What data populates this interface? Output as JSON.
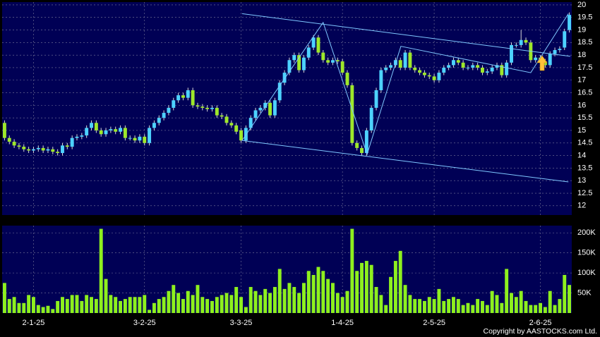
{
  "chart_data": {
    "type": "candlestick",
    "copyright": "Copyright by AASTOCKS.com Ltd.",
    "categories": [
      null,
      null,
      null,
      null,
      null,
      null,
      "2-1-25",
      null,
      null,
      null,
      null,
      null,
      null,
      null,
      null,
      null,
      null,
      null,
      null,
      null,
      null,
      null,
      null,
      null,
      null,
      null,
      null,
      null,
      null,
      "3-2-25",
      null,
      null,
      null,
      null,
      null,
      null,
      null,
      null,
      null,
      null,
      null,
      null,
      null,
      null,
      null,
      null,
      null,
      null,
      null,
      "3-3-25",
      null,
      null,
      null,
      null,
      null,
      null,
      null,
      null,
      null,
      null,
      null,
      null,
      null,
      null,
      null,
      null,
      null,
      null,
      null,
      null,
      "1-4-25",
      null,
      null,
      null,
      null,
      null,
      null,
      null,
      null,
      null,
      null,
      null,
      null,
      null,
      null,
      null,
      null,
      null,
      null,
      "2-5-25",
      null,
      null,
      null,
      null,
      null,
      null,
      null,
      null,
      null,
      null,
      null,
      null,
      null,
      null,
      null,
      null,
      null,
      null,
      null,
      null,
      null,
      "2-6-25",
      null,
      null,
      null,
      null,
      null,
      null
    ],
    "up_color": "#4dd2ff",
    "down_color": "#9ee82a",
    "volume_color": "#8ef01e",
    "line_color": "#7fc8ff",
    "open": [
      15.3,
      14.7,
      14.55,
      14.4,
      14.35,
      14.25,
      14.2,
      14.25,
      14.3,
      14.2,
      14.25,
      14.15,
      14.1,
      14.4,
      14.35,
      14.7,
      14.75,
      14.8,
      15.1,
      15.3,
      15.0,
      14.85,
      15.0,
      15.05,
      14.95,
      15.1,
      14.7,
      14.7,
      14.6,
      14.75,
      14.5,
      15.1,
      15.3,
      15.5,
      15.7,
      15.9,
      16.2,
      16.4,
      16.3,
      16.6,
      16.0,
      15.95,
      15.9,
      15.85,
      15.9,
      15.6,
      15.55,
      15.3,
      15.2,
      15.0,
      14.6,
      15.1,
      15.5,
      15.8,
      15.9,
      16.1,
      15.6,
      16.2,
      16.9,
      17.3,
      17.8,
      18.0,
      17.4,
      17.9,
      18.3,
      18.7,
      18.1,
      17.8,
      17.7,
      17.8,
      17.75,
      17.3,
      16.8,
      14.5,
      14.3,
      14.1,
      15.0,
      15.9,
      16.6,
      17.4,
      17.5,
      17.6,
      17.8,
      17.5,
      18.1,
      17.5,
      17.4,
      17.3,
      17.2,
      17.15,
      17.0,
      17.3,
      17.5,
      17.6,
      17.8,
      17.7,
      17.5,
      17.5,
      17.6,
      17.5,
      17.3,
      17.35,
      17.5,
      17.6,
      17.2,
      17.7,
      18.4,
      18.4,
      18.6,
      18.5,
      17.8,
      17.9,
      17.75,
      17.6,
      18.05,
      18.2,
      18.3,
      19.0
    ],
    "high": [
      15.4,
      14.8,
      14.65,
      14.5,
      14.45,
      14.35,
      14.35,
      14.4,
      14.4,
      14.35,
      14.35,
      14.25,
      14.5,
      14.5,
      14.8,
      14.85,
      14.9,
      15.2,
      15.4,
      15.4,
      15.1,
      15.1,
      15.15,
      15.15,
      15.2,
      15.2,
      14.8,
      14.8,
      14.85,
      14.85,
      15.2,
      15.4,
      15.6,
      15.8,
      16.0,
      16.3,
      16.5,
      16.5,
      16.7,
      16.7,
      16.1,
      16.05,
      16.0,
      16.0,
      16.0,
      15.7,
      15.65,
      15.4,
      15.3,
      15.1,
      15.2,
      15.6,
      15.9,
      16.0,
      16.2,
      16.2,
      16.3,
      17.0,
      17.4,
      17.9,
      18.1,
      18.1,
      18.0,
      18.4,
      18.8,
      18.8,
      18.2,
      17.9,
      17.9,
      17.9,
      17.85,
      17.4,
      16.9,
      14.6,
      14.4,
      15.1,
      16.0,
      16.7,
      17.5,
      17.6,
      17.7,
      17.9,
      17.9,
      18.2,
      18.2,
      17.6,
      17.5,
      17.4,
      17.3,
      17.25,
      17.4,
      17.6,
      17.7,
      17.9,
      17.9,
      17.8,
      17.6,
      17.7,
      17.7,
      17.6,
      17.45,
      17.6,
      17.7,
      17.7,
      17.8,
      18.5,
      18.5,
      19.0,
      18.7,
      18.6,
      18.0,
      18.0,
      17.85,
      18.15,
      18.3,
      18.35,
      19.05,
      19.7
    ],
    "low": [
      14.6,
      14.45,
      14.3,
      14.25,
      14.15,
      14.1,
      14.1,
      14.15,
      14.1,
      14.1,
      14.05,
      14.0,
      14.0,
      14.25,
      14.25,
      14.6,
      14.65,
      14.7,
      15.0,
      14.9,
      14.75,
      14.75,
      14.9,
      14.85,
      14.85,
      14.6,
      14.6,
      14.5,
      14.5,
      14.4,
      14.4,
      15.0,
      15.2,
      15.4,
      15.6,
      15.8,
      16.1,
      16.2,
      16.2,
      15.9,
      15.85,
      15.8,
      15.75,
      15.75,
      15.5,
      15.45,
      15.2,
      15.1,
      14.85,
      14.5,
      14.5,
      15.0,
      15.4,
      15.7,
      15.8,
      15.5,
      15.5,
      16.1,
      16.8,
      17.2,
      17.7,
      17.3,
      17.3,
      17.8,
      18.2,
      18.0,
      17.7,
      17.6,
      17.6,
      17.65,
      17.2,
      16.7,
      14.4,
      14.2,
      14.0,
      14.0,
      14.9,
      15.8,
      16.5,
      17.3,
      17.4,
      17.5,
      17.4,
      17.4,
      17.4,
      17.3,
      17.2,
      17.1,
      17.05,
      16.9,
      16.9,
      17.2,
      17.4,
      17.5,
      17.6,
      17.4,
      17.4,
      17.4,
      17.4,
      17.2,
      17.2,
      17.25,
      17.4,
      17.1,
      17.1,
      17.6,
      18.3,
      18.3,
      18.4,
      17.7,
      17.7,
      17.65,
      17.5,
      17.5,
      17.95,
      18.1,
      18.2,
      18.9
    ],
    "close": [
      14.7,
      14.55,
      14.4,
      14.35,
      14.25,
      14.2,
      14.25,
      14.3,
      14.2,
      14.25,
      14.15,
      14.1,
      14.4,
      14.35,
      14.7,
      14.75,
      14.8,
      15.1,
      15.3,
      15.0,
      14.85,
      15.0,
      15.05,
      14.95,
      15.1,
      14.7,
      14.7,
      14.6,
      14.75,
      14.5,
      15.1,
      15.3,
      15.5,
      15.7,
      15.9,
      16.2,
      16.4,
      16.3,
      16.6,
      16.0,
      15.95,
      15.9,
      15.85,
      15.9,
      15.6,
      15.55,
      15.3,
      15.2,
      14.95,
      14.6,
      15.1,
      15.5,
      15.8,
      15.9,
      16.1,
      15.6,
      16.2,
      16.9,
      17.3,
      17.8,
      18.0,
      17.4,
      17.9,
      18.3,
      18.7,
      18.1,
      17.8,
      17.7,
      17.8,
      17.75,
      17.3,
      16.8,
      14.5,
      14.3,
      14.1,
      15.0,
      15.9,
      16.6,
      17.4,
      17.5,
      17.6,
      17.8,
      17.5,
      18.1,
      17.5,
      17.4,
      17.3,
      17.2,
      17.15,
      17.0,
      17.3,
      17.5,
      17.6,
      17.8,
      17.7,
      17.5,
      17.5,
      17.6,
      17.5,
      17.3,
      17.35,
      17.5,
      17.6,
      17.2,
      17.7,
      18.4,
      18.4,
      18.6,
      18.5,
      17.8,
      17.9,
      17.75,
      17.6,
      18.05,
      18.2,
      18.25,
      18.95,
      19.6
    ],
    "volume": [
      75000,
      35000,
      40000,
      25000,
      25000,
      45000,
      40000,
      20000,
      15000,
      18000,
      10000,
      30000,
      40000,
      35000,
      45000,
      45000,
      30000,
      45000,
      40000,
      35000,
      210000,
      85000,
      45000,
      40000,
      30000,
      35000,
      40000,
      40000,
      40000,
      45000,
      8000,
      25000,
      35000,
      40000,
      55000,
      70000,
      50000,
      35000,
      55000,
      45000,
      70000,
      40000,
      35000,
      30000,
      40000,
      45000,
      50000,
      45000,
      65000,
      40000,
      15000,
      65000,
      55000,
      45000,
      60000,
      50000,
      65000,
      110000,
      60000,
      75000,
      65000,
      50000,
      75000,
      105000,
      95000,
      115000,
      105000,
      85000,
      75000,
      50000,
      40000,
      55000,
      210000,
      105000,
      125000,
      130000,
      120000,
      65000,
      45000,
      20000,
      90000,
      130000,
      155000,
      70000,
      45000,
      35000,
      35000,
      30000,
      40000,
      35000,
      60000,
      30000,
      35000,
      40000,
      35000,
      20000,
      25000,
      20000,
      35000,
      30000,
      20000,
      55000,
      45000,
      25000,
      110000,
      50000,
      40000,
      55000,
      30000,
      20000,
      20000,
      25000,
      15000,
      55000,
      20000,
      35000,
      95000,
      70000
    ],
    "ylim": [
      11.63,
      20.11
    ],
    "yticks": [
      12,
      12.5,
      13,
      13.5,
      14,
      14.5,
      15,
      15.5,
      16,
      16.5,
      17,
      17.5,
      18,
      18.5,
      19,
      19.5,
      20
    ],
    "y2lim": [
      0,
      218000
    ],
    "y2ticks": [
      {
        "value": 50000,
        "label": "50K"
      },
      {
        "value": 100000,
        "label": "100K"
      },
      {
        "value": 150000,
        "label": "150K"
      },
      {
        "value": 200000,
        "label": "200K"
      }
    ],
    "grid": true,
    "trendlines": [
      {
        "x": [
          49.2,
          117.2
        ],
        "y": [
          19.65,
          17.95
        ]
      },
      {
        "x": [
          49.2,
          116.8
        ],
        "y": [
          14.6,
          12.95
        ]
      },
      {
        "x": [
          49.2,
          66.0,
          75.1,
          82.1,
          109.0,
          116.8
        ],
        "y": [
          14.6,
          19.3,
          14.05,
          18.35,
          17.3,
          19.65
        ]
      }
    ]
  }
}
